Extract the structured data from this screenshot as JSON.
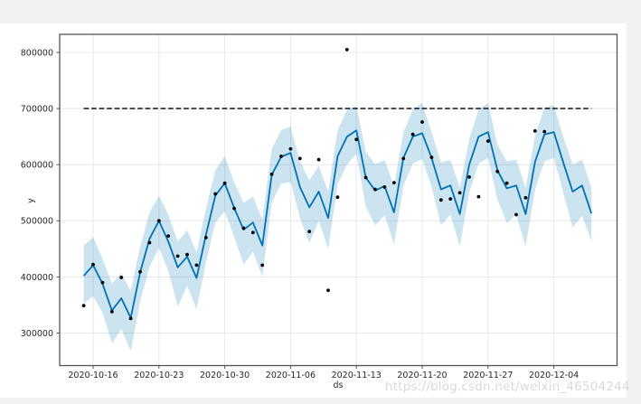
{
  "page": {
    "watermark": "https://blog.csdn.net/weixin_46504244"
  },
  "chart_data": {
    "type": "line",
    "title": "",
    "xlabel": "ds",
    "ylabel": "y",
    "grid": true,
    "legend_position": "none",
    "background": "#ffffff",
    "page_background": "#f2f2f2",
    "xlim": [
      "2020-10-12",
      "2020-12-11"
    ],
    "ylim": [
      243000,
      832000
    ],
    "x_ticks": [
      "2020-10-16",
      "2020-10-23",
      "2020-10-30",
      "2020-11-06",
      "2020-11-13",
      "2020-11-20",
      "2020-11-27",
      "2020-12-04"
    ],
    "y_ticks": [
      300000,
      400000,
      500000,
      600000,
      700000,
      800000
    ],
    "cap_line": {
      "label": "cap",
      "value": 700000,
      "style": "dashed",
      "color": "#000000",
      "x_start": "2020-10-15",
      "x_end": "2020-12-08"
    },
    "forecast": {
      "name": "yhat",
      "line_color": "#0072b2",
      "band_color": "#0072b2",
      "band_opacity": 0.2,
      "dates": [
        "2020-10-15",
        "2020-10-16",
        "2020-10-17",
        "2020-10-18",
        "2020-10-19",
        "2020-10-20",
        "2020-10-21",
        "2020-10-22",
        "2020-10-23",
        "2020-10-24",
        "2020-10-25",
        "2020-10-26",
        "2020-10-27",
        "2020-10-28",
        "2020-10-29",
        "2020-10-30",
        "2020-10-31",
        "2020-11-01",
        "2020-11-02",
        "2020-11-03",
        "2020-11-04",
        "2020-11-05",
        "2020-11-06",
        "2020-11-07",
        "2020-11-08",
        "2020-11-09",
        "2020-11-10",
        "2020-11-11",
        "2020-11-12",
        "2020-11-13",
        "2020-11-14",
        "2020-11-15",
        "2020-11-16",
        "2020-11-17",
        "2020-11-18",
        "2020-11-19",
        "2020-11-20",
        "2020-11-21",
        "2020-11-22",
        "2020-11-23",
        "2020-11-24",
        "2020-11-25",
        "2020-11-26",
        "2020-11-27",
        "2020-11-28",
        "2020-11-29",
        "2020-11-30",
        "2020-12-01",
        "2020-12-02",
        "2020-12-03",
        "2020-12-04",
        "2020-12-05",
        "2020-12-06",
        "2020-12-07",
        "2020-12-08"
      ],
      "yhat": [
        402000,
        421000,
        388000,
        340000,
        362000,
        327000,
        408000,
        468000,
        500000,
        463000,
        417000,
        436000,
        398000,
        475000,
        545000,
        567000,
        523000,
        484000,
        497000,
        456000,
        582000,
        614000,
        621000,
        560000,
        524000,
        552000,
        505000,
        615000,
        650000,
        661000,
        577000,
        554000,
        562000,
        515000,
        612000,
        650000,
        656000,
        612000,
        556000,
        563000,
        512000,
        600000,
        650000,
        658000,
        590000,
        558000,
        563000,
        512000,
        605000,
        654000,
        658000,
        604000,
        552000,
        563000,
        513000
      ],
      "yhat_upper": [
        456000,
        471000,
        433000,
        388000,
        407000,
        374000,
        454000,
        515000,
        545000,
        511000,
        463000,
        483000,
        444000,
        522000,
        590000,
        615000,
        569000,
        532000,
        543000,
        503000,
        628000,
        662000,
        668000,
        606000,
        572000,
        598000,
        552000,
        661000,
        698000,
        704000,
        623000,
        601000,
        608000,
        562000,
        658000,
        698000,
        710000,
        658000,
        604000,
        609000,
        559000,
        646000,
        698000,
        710000,
        636000,
        606000,
        609000,
        559000,
        651000,
        702000,
        706000,
        650000,
        600000,
        609000,
        559000
      ],
      "yhat_lower": [
        352000,
        366000,
        336000,
        282000,
        307000,
        268000,
        356000,
        418000,
        452000,
        411000,
        347000,
        384000,
        343000,
        425000,
        497000,
        517000,
        471000,
        422000,
        445000,
        400000,
        532000,
        566000,
        569000,
        505000,
        460000,
        500000,
        450000,
        565000,
        600000,
        619000,
        525000,
        492000,
        510000,
        458000,
        562000,
        602000,
        610000,
        560000,
        492000,
        511000,
        454000,
        550000,
        602000,
        612000,
        538000,
        496000,
        511000,
        454000,
        555000,
        606000,
        612000,
        550000,
        488000,
        509000,
        463000
      ]
    },
    "observed": {
      "name": "y",
      "marker_color": "#000000",
      "dates": [
        "2020-10-15",
        "2020-10-16",
        "2020-10-17",
        "2020-10-18",
        "2020-10-19",
        "2020-10-20",
        "2020-10-21",
        "2020-10-22",
        "2020-10-23",
        "2020-10-24",
        "2020-10-25",
        "2020-10-26",
        "2020-10-27",
        "2020-10-28",
        "2020-10-29",
        "2020-10-30",
        "2020-10-31",
        "2020-11-01",
        "2020-11-02",
        "2020-11-03",
        "2020-11-04",
        "2020-11-05",
        "2020-11-06",
        "2020-11-07",
        "2020-11-08",
        "2020-11-09",
        "2020-11-10",
        "2020-11-11",
        "2020-11-12",
        "2020-11-13",
        "2020-11-14",
        "2020-11-15",
        "2020-11-16",
        "2020-11-17",
        "2020-11-18",
        "2020-11-19",
        "2020-11-20",
        "2020-11-21",
        "2020-11-22",
        "2020-11-23",
        "2020-11-24",
        "2020-11-25",
        "2020-11-26",
        "2020-11-27",
        "2020-11-28",
        "2020-11-29",
        "2020-11-30",
        "2020-12-01",
        "2020-12-02",
        "2020-12-03"
      ],
      "values": [
        349000,
        422000,
        390000,
        338000,
        399000,
        326000,
        409000,
        461000,
        500000,
        473000,
        437000,
        440000,
        421000,
        470000,
        548000,
        567000,
        522000,
        487000,
        479000,
        421000,
        583000,
        615000,
        628000,
        611000,
        481000,
        609000,
        376000,
        542000,
        805000,
        645000,
        577000,
        556000,
        560000,
        568000,
        611000,
        654000,
        676000,
        613000,
        537000,
        539000,
        550000,
        578000,
        543000,
        642000,
        588000,
        567000,
        511000,
        541000,
        660000,
        659000
      ]
    },
    "axis_colors": {
      "spine": "#545454",
      "grid": "#e8e8e8",
      "tick_label": "#262626"
    }
  }
}
